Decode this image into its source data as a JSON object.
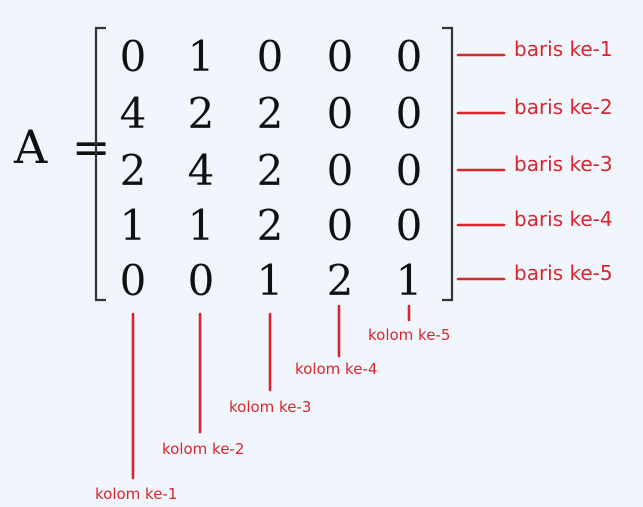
{
  "matrix": {
    "name": "A",
    "equals": "=",
    "rows": [
      [
        "0",
        "1",
        "0",
        "0",
        "0"
      ],
      [
        "4",
        "2",
        "2",
        "0",
        "0"
      ],
      [
        "2",
        "4",
        "2",
        "0",
        "0"
      ],
      [
        "1",
        "1",
        "2",
        "0",
        "0"
      ],
      [
        "0",
        "0",
        "1",
        "2",
        "1"
      ]
    ]
  },
  "row_labels": [
    "baris ke-1",
    "baris ke-2",
    "baris ke-3",
    "baris ke-4",
    "baris ke-5"
  ],
  "column_labels": [
    "kolom ke-1",
    "kolom ke-2",
    "kolom ke-3",
    "kolom ke-4",
    "kolom ke-5"
  ],
  "colors": {
    "annotation": "#d9262c",
    "matrix_text": "#111111",
    "background": "#f1f6fc"
  }
}
